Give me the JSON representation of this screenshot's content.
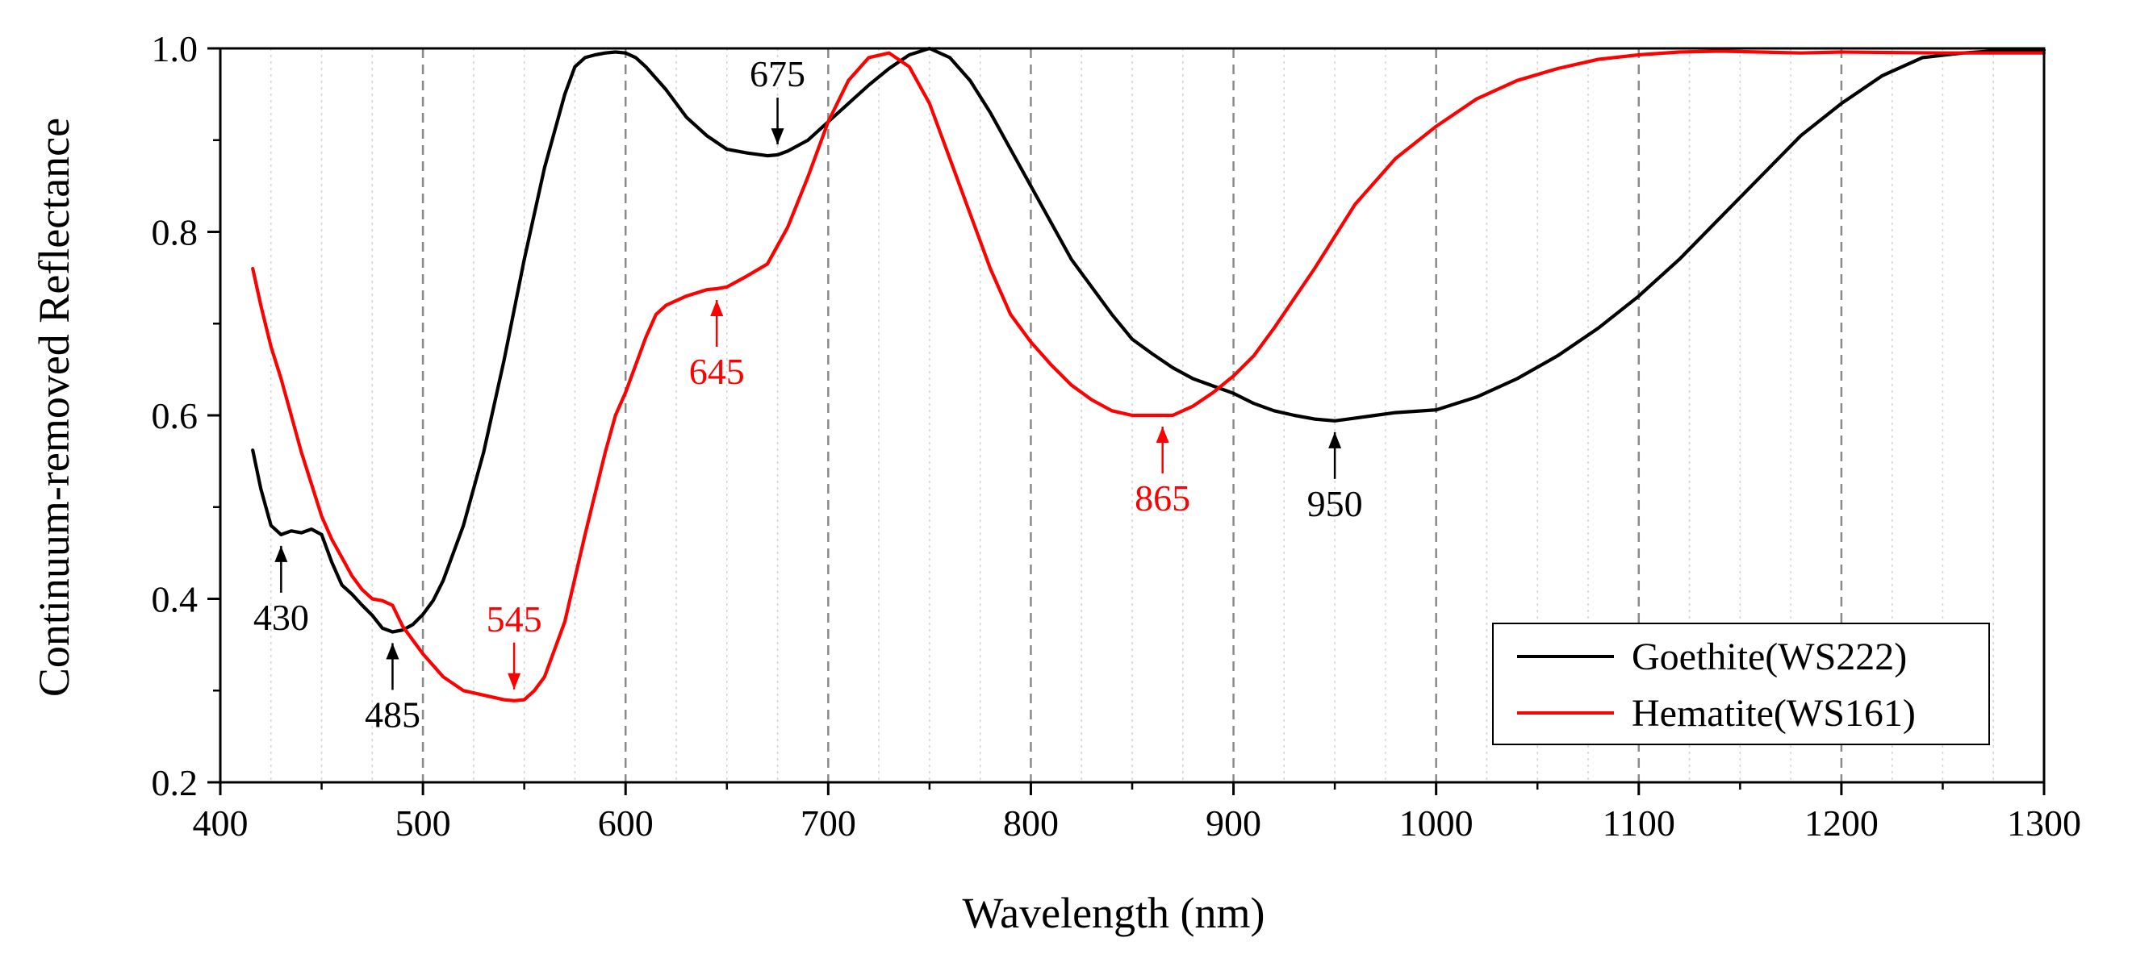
{
  "chart_data": {
    "type": "line",
    "xlabel": "Wavelength (nm)",
    "ylabel": "Continuum-removed Reflectance",
    "xlim": [
      400,
      1300
    ],
    "ylim": [
      0.2,
      1.0
    ],
    "xticks": [
      400,
      500,
      600,
      700,
      800,
      900,
      1000,
      1100,
      1200,
      1300
    ],
    "yticks": [
      0.2,
      0.4,
      0.6,
      0.8,
      1.0
    ],
    "xtick_labels": [
      "400",
      "500",
      "600",
      "700",
      "800",
      "900",
      "1000",
      "1100",
      "1200",
      "1300"
    ],
    "ytick_labels": [
      "0.2",
      "0.4",
      "0.6",
      "0.8",
      "1.0"
    ],
    "grid": "vertical dashed",
    "legend_position": "bottom-right",
    "series": [
      {
        "name": "Goethite(WS222)",
        "color": "#000000",
        "x": [
          416,
          420,
          425,
          430,
          435,
          440,
          445,
          450,
          455,
          460,
          465,
          470,
          475,
          480,
          485,
          490,
          495,
          500,
          505,
          510,
          520,
          530,
          540,
          550,
          560,
          570,
          575,
          580,
          585,
          590,
          595,
          600,
          605,
          610,
          620,
          630,
          640,
          650,
          660,
          670,
          675,
          680,
          690,
          700,
          710,
          720,
          730,
          740,
          750,
          760,
          770,
          780,
          790,
          800,
          820,
          840,
          850,
          860,
          870,
          880,
          890,
          900,
          910,
          920,
          930,
          940,
          950,
          960,
          970,
          980,
          1000,
          1020,
          1040,
          1060,
          1080,
          1100,
          1120,
          1140,
          1160,
          1180,
          1200,
          1220,
          1240,
          1260,
          1280,
          1300
        ],
        "y": [
          0.562,
          0.52,
          0.48,
          0.47,
          0.474,
          0.472,
          0.476,
          0.47,
          0.44,
          0.415,
          0.405,
          0.393,
          0.382,
          0.368,
          0.364,
          0.366,
          0.372,
          0.383,
          0.398,
          0.42,
          0.48,
          0.56,
          0.66,
          0.77,
          0.87,
          0.95,
          0.98,
          0.99,
          0.993,
          0.995,
          0.996,
          0.995,
          0.99,
          0.98,
          0.955,
          0.925,
          0.905,
          0.89,
          0.886,
          0.883,
          0.884,
          0.888,
          0.9,
          0.92,
          0.94,
          0.96,
          0.978,
          0.993,
          1.0,
          0.99,
          0.965,
          0.93,
          0.89,
          0.85,
          0.77,
          0.71,
          0.683,
          0.667,
          0.652,
          0.64,
          0.632,
          0.624,
          0.613,
          0.605,
          0.6,
          0.596,
          0.594,
          0.597,
          0.6,
          0.603,
          0.606,
          0.62,
          0.64,
          0.665,
          0.695,
          0.73,
          0.77,
          0.815,
          0.86,
          0.905,
          0.94,
          0.97,
          0.99,
          0.995,
          0.998,
          0.998
        ]
      },
      {
        "name": "Hematite(WS161)",
        "color": "#ff0000",
        "x": [
          416,
          420,
          425,
          430,
          435,
          440,
          445,
          450,
          455,
          460,
          465,
          470,
          475,
          480,
          485,
          490,
          495,
          500,
          510,
          520,
          530,
          540,
          545,
          550,
          555,
          560,
          570,
          580,
          590,
          595,
          600,
          605,
          610,
          615,
          620,
          630,
          640,
          645,
          650,
          660,
          670,
          680,
          690,
          700,
          710,
          720,
          730,
          740,
          750,
          760,
          770,
          780,
          790,
          800,
          810,
          820,
          830,
          840,
          850,
          860,
          865,
          870,
          880,
          890,
          900,
          910,
          920,
          940,
          960,
          980,
          1000,
          1020,
          1040,
          1060,
          1080,
          1100,
          1120,
          1140,
          1160,
          1180,
          1200,
          1250,
          1300
        ],
        "y": [
          0.76,
          0.72,
          0.675,
          0.64,
          0.6,
          0.56,
          0.525,
          0.49,
          0.465,
          0.445,
          0.425,
          0.41,
          0.4,
          0.398,
          0.393,
          0.37,
          0.355,
          0.34,
          0.315,
          0.3,
          0.295,
          0.29,
          0.289,
          0.29,
          0.3,
          0.315,
          0.375,
          0.47,
          0.56,
          0.6,
          0.625,
          0.655,
          0.685,
          0.71,
          0.72,
          0.73,
          0.737,
          0.738,
          0.74,
          0.752,
          0.765,
          0.805,
          0.86,
          0.92,
          0.965,
          0.99,
          0.995,
          0.98,
          0.94,
          0.88,
          0.82,
          0.76,
          0.71,
          0.68,
          0.655,
          0.633,
          0.617,
          0.605,
          0.6,
          0.6,
          0.6,
          0.6,
          0.61,
          0.625,
          0.643,
          0.665,
          0.695,
          0.76,
          0.83,
          0.88,
          0.915,
          0.945,
          0.965,
          0.978,
          0.988,
          0.993,
          0.996,
          0.997,
          0.996,
          0.995,
          0.996,
          0.995,
          0.995
        ]
      }
    ],
    "annotations": [
      {
        "text": "430",
        "x": 430,
        "y": 0.47,
        "direction": "up",
        "color": "#000000"
      },
      {
        "text": "485",
        "x": 485,
        "y": 0.364,
        "direction": "up",
        "color": "#000000"
      },
      {
        "text": "545",
        "x": 545,
        "y": 0.289,
        "direction": "down",
        "color": "#ff0000"
      },
      {
        "text": "645",
        "x": 645,
        "y": 0.738,
        "direction": "up",
        "color": "#ff0000"
      },
      {
        "text": "675",
        "x": 675,
        "y": 0.883,
        "direction": "down",
        "color": "#000000"
      },
      {
        "text": "865",
        "x": 865,
        "y": 0.6,
        "direction": "up",
        "color": "#ff0000"
      },
      {
        "text": "950",
        "x": 950,
        "y": 0.594,
        "direction": "up",
        "color": "#000000"
      }
    ]
  }
}
